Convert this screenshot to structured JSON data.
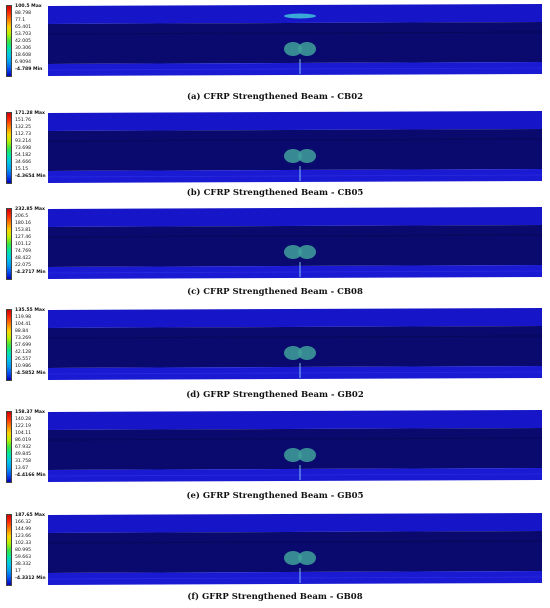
{
  "colors": {
    "scale": [
      "#d00000",
      "#ff2a00",
      "#ff7f00",
      "#ffd400",
      "#b8f000",
      "#3ce63c",
      "#00e6a0",
      "#00c8e6",
      "#009cf0",
      "#0050f0",
      "#0000b8"
    ],
    "beam_top": "#1616c8",
    "beam_web": "#0a0a6e",
    "beam_web_dark": "#08085a",
    "beam_bottom": "#1a1ad2",
    "crack": "#3fa09a"
  },
  "panels": [
    {
      "caption": "(a) CFRP Strengthened Beam - CB02",
      "max": "100.5 Max",
      "levels": [
        "88.798",
        "77.1",
        "65.401",
        "53.703",
        "42.005",
        "30.306",
        "18.608",
        "6.9094"
      ],
      "min": "-4.789 Min",
      "top_damage": true
    },
    {
      "caption": "(b) CFRP Strengthened Beam - CB05",
      "max": "171.28 Max",
      "levels": [
        "151.76",
        "132.25",
        "112.73",
        "93.214",
        "73.698",
        "54.182",
        "34.666",
        "15.15"
      ],
      "min": "-4.3654 Min",
      "top_damage": false
    },
    {
      "caption": "(c) CFRP Strengthened Beam - CB08",
      "max": "232.85 Max",
      "levels": [
        "206.5",
        "180.16",
        "153.81",
        "127.46",
        "101.12",
        "74.769",
        "48.422",
        "22.075"
      ],
      "min": "-4.2717 Min",
      "top_damage": false
    },
    {
      "caption": "(d) GFRP Strengthened Beam - GB02",
      "max": "135.55 Max",
      "levels": [
        "119.98",
        "104.41",
        "88.84",
        "73.269",
        "57.699",
        "42.128",
        "26.557",
        "10.986"
      ],
      "min": "-4.5852 Min",
      "top_damage": false
    },
    {
      "caption": "(e) GFRP Strengthened Beam - GB05",
      "max": "158.37 Max",
      "levels": [
        "140.28",
        "122.19",
        "104.11",
        "86.019",
        "67.932",
        "49.845",
        "31.758",
        "13.67"
      ],
      "min": "-4.4166 Min",
      "top_damage": false
    },
    {
      "caption": "(f) GFRP Strengthened Beam - GB08",
      "max": "187.65 Max",
      "levels": [
        "166.32",
        "144.99",
        "123.66",
        "102.33",
        "80.995",
        "59.663",
        "38.332",
        "17"
      ],
      "min": "-4.3312 Min",
      "top_damage": false
    }
  ]
}
